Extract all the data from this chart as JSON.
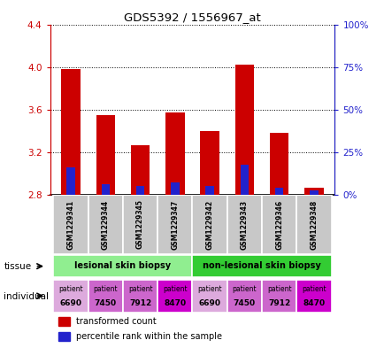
{
  "title": "GDS5392 / 1556967_at",
  "samples": [
    "GSM1229341",
    "GSM1229344",
    "GSM1229345",
    "GSM1229347",
    "GSM1229342",
    "GSM1229343",
    "GSM1229346",
    "GSM1229348"
  ],
  "red_values": [
    3.98,
    3.55,
    3.27,
    3.57,
    3.4,
    4.02,
    3.38,
    2.87
  ],
  "blue_values": [
    3.06,
    2.9,
    2.88,
    2.92,
    2.88,
    3.08,
    2.87,
    2.84
  ],
  "base": 2.8,
  "ymin": 2.8,
  "ymax": 4.4,
  "yticks_left": [
    2.8,
    3.2,
    3.6,
    4.0,
    4.4
  ],
  "yticks_right_vals": [
    0,
    25,
    50,
    75,
    100
  ],
  "yticks_right_labels": [
    "0%",
    "25%",
    "50%",
    "75%",
    "100%"
  ],
  "tissue_labels": [
    "lesional skin biopsy",
    "non-lesional skin biopsy"
  ],
  "tissue_colors": [
    "#90ee90",
    "#33cc33"
  ],
  "individual_labels_top": [
    "patient",
    "patient",
    "patient",
    "patient",
    "patient",
    "patient",
    "patient",
    "patient"
  ],
  "individual_labels_bot": [
    "6690",
    "7450",
    "7912",
    "8470",
    "6690",
    "7450",
    "7912",
    "8470"
  ],
  "individual_colors": [
    "#ddaadd",
    "#cc66cc",
    "#cc66cc",
    "#cc00cc",
    "#ddaadd",
    "#cc66cc",
    "#cc66cc",
    "#cc00cc"
  ],
  "red_color": "#cc0000",
  "blue_color": "#2222cc",
  "bg_color": "#ffffff",
  "sample_bg_color": "#c8c8c8",
  "left_axis_color": "#cc0000",
  "right_axis_color": "#2222cc"
}
